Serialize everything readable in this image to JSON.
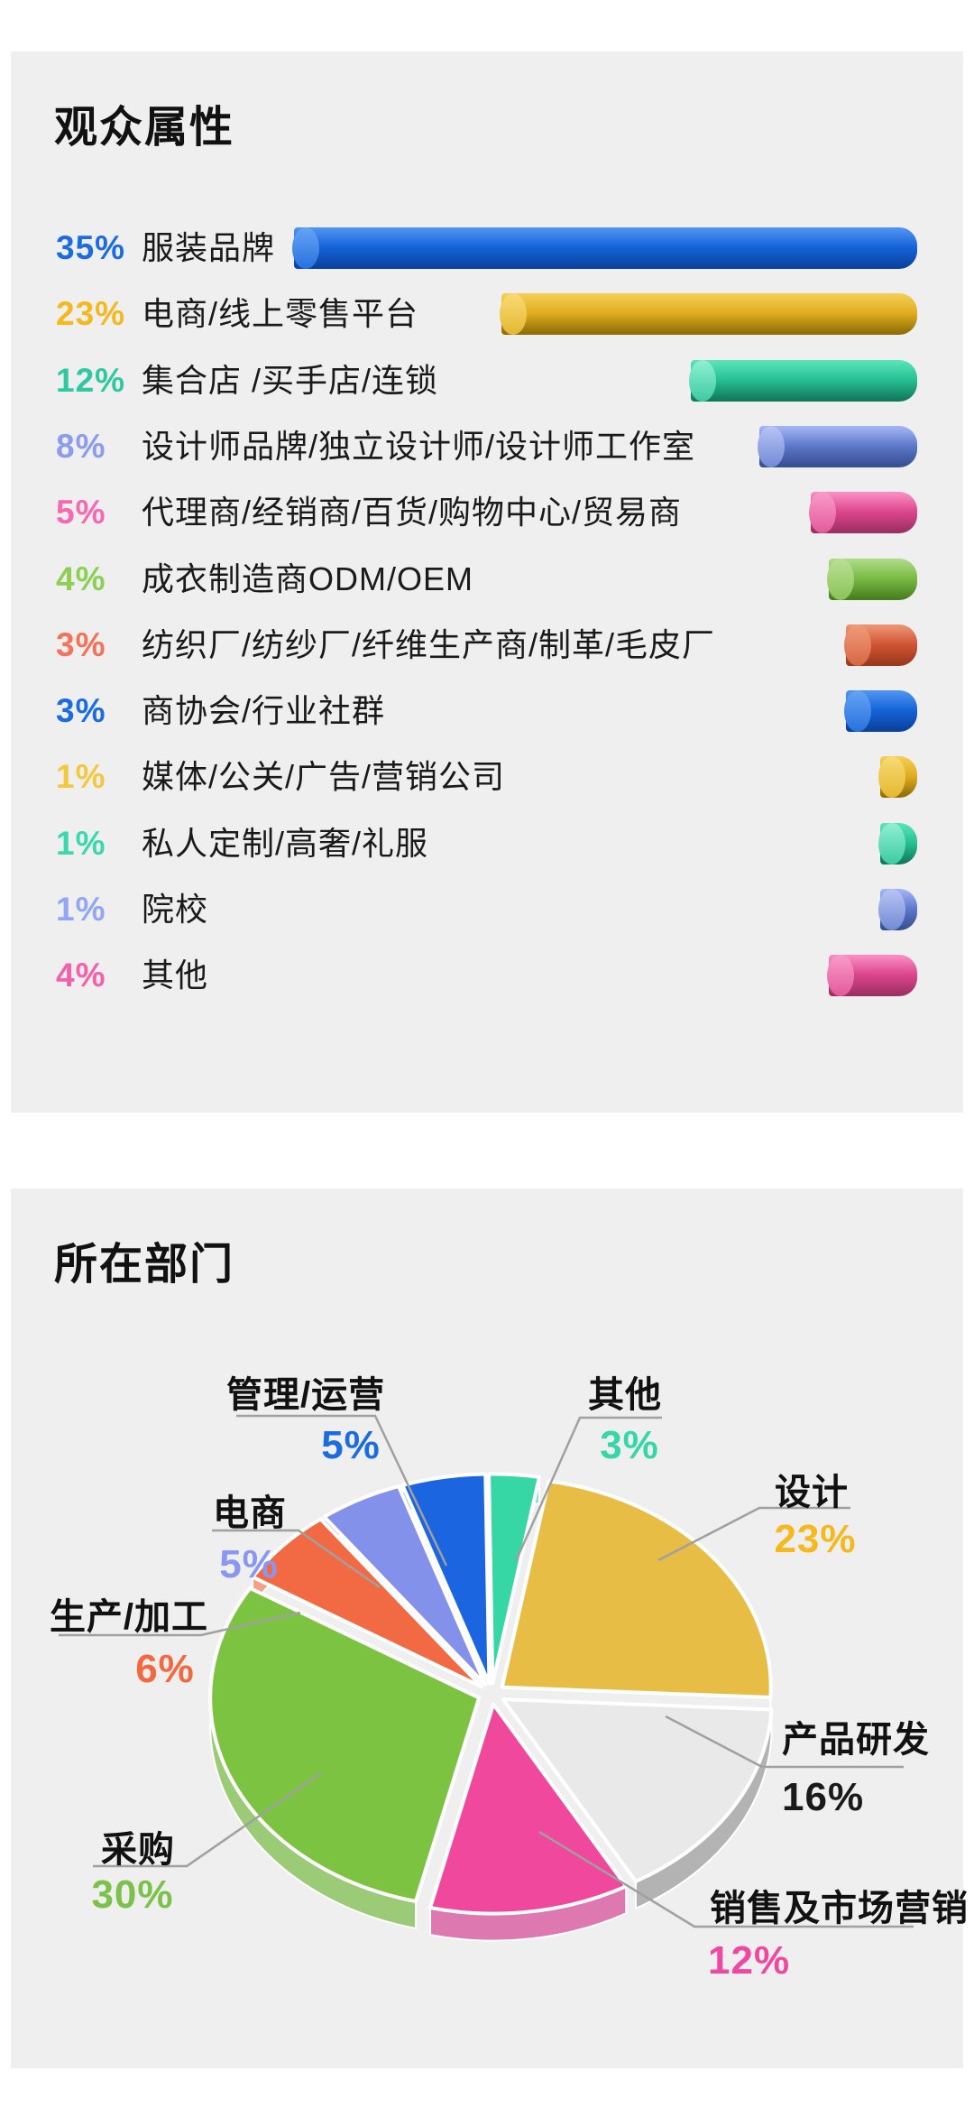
{
  "page": {
    "background": "#ffffff",
    "card_background": "#efefef"
  },
  "audience_section": {
    "title": "观众属性",
    "rows": [
      {
        "pct": "35%",
        "value": 35,
        "label": "服装品牌",
        "pct_color": "#1B6CE1",
        "bar_light": "#4E92F0",
        "bar_main": "#1463D8",
        "bar_dark": "#0B429E",
        "cap": "#66A3F5"
      },
      {
        "pct": "23%",
        "value": 23,
        "label": "电商/线上零售平台",
        "pct_color": "#F5B91E",
        "bar_light": "#F4CC52",
        "bar_main": "#DFAD1E",
        "bar_dark": "#8F6F07",
        "cap": "#F8DB74"
      },
      {
        "pct": "12%",
        "value": 12,
        "label": "集合店 /买手店/连锁",
        "pct_color": "#2EC9A0",
        "bar_light": "#57E2B7",
        "bar_main": "#26BF94",
        "bar_dark": "#117A5B",
        "cap": "#8FF0D2"
      },
      {
        "pct": "8%",
        "value": 8,
        "label": "设计师品牌/独立设计师/设计师工作室",
        "pct_color": "#8B9BF0",
        "bar_light": "#9FB2F3",
        "bar_main": "#5E78CA",
        "bar_dark": "#374F93",
        "cap": "#B7C4F6"
      },
      {
        "pct": "5%",
        "value": 5,
        "label": "代理商/经销商/百货/购物中心/贸易商",
        "pct_color": "#F868B0",
        "bar_light": "#F98BC2",
        "bar_main": "#DB468C",
        "bar_dark": "#9E2F63",
        "cap": "#FA9CCB"
      },
      {
        "pct": "4%",
        "value": 4,
        "label": "成衣制造商ODM/OEM",
        "pct_color": "#8BD053",
        "bar_light": "#ABDA83",
        "bar_main": "#7ABA45",
        "bar_dark": "#477F1F",
        "cap": "#BCE095"
      },
      {
        "pct": "3%",
        "value": 3,
        "label": "纺织厂/纺纱厂/纤维生产商/制革/毛皮厂",
        "pct_color": "#F4715A",
        "bar_light": "#EC9373",
        "bar_main": "#D05534",
        "bar_dark": "#9A391D",
        "cap": "#F09C79"
      },
      {
        "pct": "3%",
        "value": 3,
        "label": "商协会/行业社群",
        "pct_color": "#1B6CE1",
        "bar_light": "#4E92F0",
        "bar_main": "#1463D8",
        "bar_dark": "#0B429E",
        "cap": "#66A3F5"
      },
      {
        "pct": "1%",
        "value": 1,
        "label": "媒体/公关/广告/营销公司",
        "pct_color": "#F3C83D",
        "bar_light": "#F4CC52",
        "bar_main": "#DFAD1E",
        "bar_dark": "#8F6F07",
        "cap": "#F8DB74"
      },
      {
        "pct": "1%",
        "value": 1,
        "label": "私人定制/高奢/礼服",
        "pct_color": "#3BD8AD",
        "bar_light": "#57E2B7",
        "bar_main": "#26BF94",
        "bar_dark": "#117A5B",
        "cap": "#8FF0D2"
      },
      {
        "pct": "1%",
        "value": 1,
        "label": "院校",
        "pct_color": "#93A5F5",
        "bar_light": "#9FB2F3",
        "bar_main": "#5E78CA",
        "bar_dark": "#374F93",
        "cap": "#B7C4F6"
      },
      {
        "pct": "4%",
        "value": 4,
        "label": "其他",
        "pct_color": "#F560A8",
        "bar_light": "#F98BC2",
        "bar_main": "#DB468C",
        "bar_dark": "#9E2F63",
        "cap": "#FA9CCB"
      }
    ]
  },
  "department_section": {
    "title": "所在部门",
    "slices": [
      {
        "label": "设计",
        "pct": "23%",
        "value": 23,
        "top": "#E8BD45",
        "side": "#C6931F",
        "pct_color": "#F5B91E"
      },
      {
        "label": "产品研发",
        "pct": "16%",
        "value": 16,
        "top": "#E9E9E9",
        "side": "#B3B3B3",
        "pct_color": "#1A1A1A"
      },
      {
        "label": "销售及市场营销",
        "pct": "12%",
        "value": 12,
        "top": "#F0489D",
        "side": "#DE78B1",
        "pct_color": "#F0479F"
      },
      {
        "label": "采购",
        "pct": "30%",
        "value": 30,
        "top": "#7DC342",
        "side": "#9CCB77",
        "pct_color": "#7CC24A"
      },
      {
        "label": "生产/加工",
        "pct": "6%",
        "value": 6,
        "top": "#F26A43",
        "side": "#F5A087",
        "pct_color": "#F2693F"
      },
      {
        "label": "电商",
        "pct": "5%",
        "value": 5,
        "top": "#8491EA",
        "side": "#B1BCF3",
        "pct_color": "#8A97F0"
      },
      {
        "label": "管理/运营",
        "pct": "5%",
        "value": 5,
        "top": "#1B66E0",
        "side": "#6B97EC",
        "pct_color": "#1B6CE1"
      },
      {
        "label": "其他",
        "pct": "3%",
        "value": 3,
        "top": "#36D6A5",
        "side": "#86E7C9",
        "pct_color": "#35D6A8"
      }
    ]
  },
  "chart_data": [
    {
      "type": "bar",
      "orientation": "horizontal",
      "title": "观众属性",
      "categories": [
        "服装品牌",
        "电商/线上零售平台",
        "集合店 /买手店/连锁",
        "设计师品牌/独立设计师/设计师工作室",
        "代理商/经销商/百货/购物中心/贸易商",
        "成衣制造商ODM/OEM",
        "纺织厂/纺纱厂/纤维生产商/制革/毛皮厂",
        "商协会/行业社群",
        "媒体/公关/广告/营销公司",
        "私人定制/高奢/礼服",
        "院校",
        "其他"
      ],
      "values": [
        35,
        23,
        12,
        8,
        5,
        4,
        3,
        3,
        1,
        1,
        1,
        4
      ],
      "unit": "%",
      "bars_right_aligned": true,
      "colors": [
        "#1463D8",
        "#DFAD1E",
        "#26BF94",
        "#5E78CA",
        "#DB468C",
        "#7ABA45",
        "#D05534",
        "#1463D8",
        "#DFAD1E",
        "#26BF94",
        "#5E78CA",
        "#DB468C"
      ]
    },
    {
      "type": "pie",
      "title": "所在部门",
      "style": "3d-exploded",
      "labels": [
        "设计",
        "产品研发",
        "销售及市场营销",
        "采购",
        "生产/加工",
        "电商",
        "管理/运营",
        "其他"
      ],
      "values": [
        23,
        16,
        12,
        30,
        6,
        5,
        5,
        3
      ],
      "unit": "%",
      "colors": [
        "#E8BD45",
        "#E9E9E9",
        "#F0489D",
        "#7DC342",
        "#F26A43",
        "#8491EA",
        "#1B66E0",
        "#36D6A5"
      ],
      "start_angle_deg_cw_from_top": 10
    }
  ]
}
